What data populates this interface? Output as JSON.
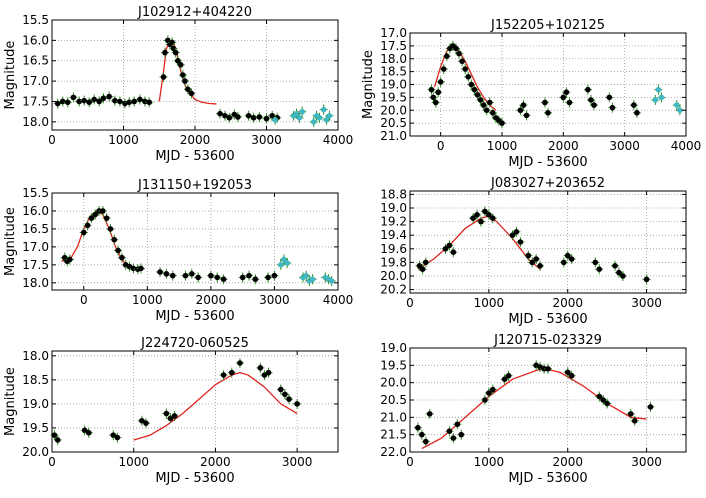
{
  "chart_data": [
    {
      "type": "scatter",
      "title": "J102912+404220",
      "xlabel": "MJD - 53600",
      "ylabel": "Magnitude",
      "xlim": [
        0,
        4000
      ],
      "ylim": [
        18.2,
        15.5
      ],
      "y_inverted": true,
      "grid": true,
      "xticks": [
        0,
        1000,
        2000,
        3000,
        4000
      ],
      "yticks": [
        15.5,
        16.0,
        16.5,
        17.0,
        17.5,
        18.0
      ],
      "xtick_labels": [
        "0",
        "1000",
        "2000",
        "3000",
        "4000"
      ],
      "ytick_labels": [
        "15.5",
        "16.0",
        "16.5",
        "17.0",
        "17.5",
        "18.0"
      ],
      "series": [
        {
          "color": "#000000",
          "x": [
            80,
            150,
            220,
            300,
            380,
            450,
            520,
            590,
            660,
            720,
            800,
            880,
            950,
            1020,
            1080,
            1150,
            1230,
            1300,
            1360,
            1560,
            1580,
            1620,
            1650,
            1680,
            1700,
            1730,
            1760,
            1800,
            1830,
            1860,
            1900,
            1950,
            2350,
            2420,
            2480,
            2550,
            2600,
            2750,
            2820,
            2900,
            3000,
            3080,
            3150
          ],
          "y": [
            17.55,
            17.5,
            17.52,
            17.4,
            17.5,
            17.48,
            17.52,
            17.45,
            17.5,
            17.42,
            17.38,
            17.48,
            17.5,
            17.55,
            17.52,
            17.5,
            17.45,
            17.5,
            17.52,
            16.9,
            16.3,
            16.0,
            16.1,
            16.05,
            16.2,
            16.3,
            16.5,
            16.6,
            16.85,
            17.0,
            17.2,
            17.3,
            17.8,
            17.85,
            17.9,
            17.82,
            17.88,
            17.85,
            17.9,
            17.88,
            17.92,
            17.85,
            17.9
          ]
        },
        {
          "color": "#40b7c2",
          "x": [
            3120,
            3380,
            3420,
            3460,
            3500,
            3660,
            3700,
            3740,
            3800,
            3840,
            3880
          ],
          "y": [
            17.95,
            17.85,
            17.8,
            17.9,
            17.75,
            18.0,
            17.85,
            17.9,
            17.7,
            17.95,
            17.85
          ]
        }
      ],
      "model_curve": {
        "color": "#e0231e",
        "x": [
          1500,
          1550,
          1600,
          1650,
          1700,
          1750,
          1800,
          1850,
          1900,
          1950,
          2000,
          2100,
          2200,
          2300
        ],
        "y": [
          17.5,
          16.9,
          16.2,
          16.0,
          16.05,
          16.35,
          16.75,
          17.05,
          17.25,
          17.35,
          17.45,
          17.52,
          17.55,
          17.56
        ]
      }
    },
    {
      "type": "scatter",
      "title": "J152205+102125",
      "xlabel": "MJD - 53600",
      "ylabel": "Magnitude",
      "xlim": [
        -500,
        4000
      ],
      "ylim": [
        21.0,
        17.0
      ],
      "y_inverted": true,
      "grid": true,
      "xticks": [
        0,
        1000,
        2000,
        3000,
        4000
      ],
      "yticks": [
        17.0,
        17.5,
        18.0,
        18.5,
        19.0,
        19.5,
        20.0,
        20.5,
        21.0
      ],
      "xtick_labels": [
        "0",
        "1000",
        "2000",
        "3000",
        "4000"
      ],
      "ytick_labels": [
        "17.0",
        "17.5",
        "18.0",
        "18.5",
        "19.0",
        "19.5",
        "20.0",
        "20.5",
        "21.0"
      ],
      "series": [
        {
          "color": "#000000",
          "x": [
            -150,
            -120,
            -80,
            -40,
            0,
            50,
            100,
            150,
            200,
            250,
            300,
            350,
            400,
            450,
            500,
            550,
            600,
            650,
            700,
            750,
            800,
            850,
            900,
            950,
            1000,
            1300,
            1350,
            1400,
            1700,
            1750,
            2000,
            2050,
            2100,
            2400,
            2450,
            2500,
            2750,
            2800,
            3150,
            3200
          ],
          "y": [
            19.2,
            19.5,
            19.7,
            19.3,
            18.9,
            18.4,
            17.9,
            17.6,
            17.5,
            17.6,
            17.8,
            18.1,
            18.4,
            18.7,
            19.0,
            19.2,
            19.4,
            19.6,
            19.8,
            20.0,
            19.7,
            20.1,
            20.3,
            20.4,
            20.5,
            20.0,
            19.8,
            20.2,
            19.7,
            20.1,
            19.5,
            19.3,
            19.7,
            19.2,
            19.6,
            19.8,
            19.5,
            19.9,
            19.8,
            20.1
          ]
        },
        {
          "color": "#40b7c2",
          "x": [
            3500,
            3550,
            3600,
            3850,
            3900
          ],
          "y": [
            19.6,
            19.2,
            19.5,
            19.8,
            20.0
          ]
        }
      ],
      "model_curve": {
        "color": "#e0231e",
        "x": [
          -100,
          0,
          100,
          200,
          300,
          400,
          500,
          600,
          700,
          800,
          900
        ],
        "y": [
          19.1,
          18.3,
          17.7,
          17.5,
          17.7,
          18.1,
          18.6,
          19.1,
          19.5,
          19.8,
          20.0
        ]
      }
    },
    {
      "type": "scatter",
      "title": "J131150+192053",
      "xlabel": "MJD - 53600",
      "ylabel": "Magnitude",
      "xlim": [
        -500,
        4000
      ],
      "ylim": [
        18.2,
        15.5
      ],
      "y_inverted": true,
      "grid": true,
      "xticks": [
        0,
        1000,
        2000,
        3000,
        4000
      ],
      "yticks": [
        15.5,
        16.0,
        16.5,
        17.0,
        17.5,
        18.0
      ],
      "xtick_labels": [
        "0",
        "1000",
        "2000",
        "3000",
        "4000"
      ],
      "ytick_labels": [
        "15.5",
        "16.0",
        "16.5",
        "17.0",
        "17.5",
        "18.0"
      ],
      "series": [
        {
          "color": "#000000",
          "x": [
            -300,
            -260,
            -220,
            0,
            60,
            120,
            180,
            240,
            300,
            360,
            420,
            480,
            540,
            600,
            660,
            720,
            780,
            850,
            900,
            1200,
            1300,
            1400,
            1600,
            1700,
            1800,
            2000,
            2100,
            2200,
            2500,
            2600,
            2700,
            2900,
            3000
          ],
          "y": [
            17.3,
            17.4,
            17.35,
            16.6,
            16.4,
            16.2,
            16.1,
            16.0,
            16.0,
            16.2,
            16.5,
            16.8,
            17.1,
            17.3,
            17.5,
            17.55,
            17.6,
            17.62,
            17.6,
            17.7,
            17.75,
            17.8,
            17.8,
            17.75,
            17.85,
            17.8,
            17.85,
            17.9,
            17.85,
            17.8,
            17.9,
            17.85,
            17.8
          ]
        },
        {
          "color": "#40b7c2",
          "x": [
            3100,
            3150,
            3200,
            3450,
            3500,
            3550,
            3600,
            3800,
            3850,
            3900
          ],
          "y": [
            17.5,
            17.35,
            17.45,
            17.85,
            17.8,
            17.95,
            17.9,
            17.85,
            17.9,
            17.95
          ]
        }
      ],
      "model_curve": {
        "color": "#e0231e",
        "x": [
          -350,
          -200,
          -100,
          0,
          100,
          200,
          300,
          400,
          500,
          600,
          700,
          800
        ],
        "y": [
          17.4,
          17.3,
          17.0,
          16.5,
          16.15,
          16.0,
          16.1,
          16.5,
          17.0,
          17.35,
          17.55,
          17.6
        ]
      }
    },
    {
      "type": "scatter",
      "title": "J083027+203652",
      "xlabel": "MJD - 53600",
      "ylabel": "",
      "xlim": [
        0,
        3500
      ],
      "ylim": [
        20.25,
        18.75
      ],
      "y_inverted": true,
      "grid": true,
      "xticks": [
        0,
        1000,
        2000,
        3000
      ],
      "yticks": [
        18.8,
        19.0,
        19.2,
        19.4,
        19.6,
        19.8,
        20.0,
        20.2
      ],
      "xtick_labels": [
        "0",
        "1000",
        "2000",
        "3000"
      ],
      "ytick_labels": [
        "18.8",
        "19.0",
        "19.2",
        "19.4",
        "19.6",
        "19.8",
        "20.0",
        "20.2"
      ],
      "series": [
        {
          "color": "#000000",
          "x": [
            120,
            160,
            200,
            450,
            500,
            550,
            800,
            850,
            900,
            950,
            1000,
            1050,
            1300,
            1350,
            1400,
            1500,
            1550,
            1600,
            1650,
            1950,
            2000,
            2050,
            2350,
            2400,
            2600,
            2650,
            2700,
            3000
          ],
          "y": [
            19.85,
            19.9,
            19.8,
            19.6,
            19.55,
            19.65,
            19.15,
            19.1,
            19.2,
            19.05,
            19.1,
            19.15,
            19.4,
            19.35,
            19.5,
            19.7,
            19.8,
            19.75,
            19.85,
            19.8,
            19.7,
            19.75,
            19.8,
            19.9,
            19.85,
            19.95,
            20.0,
            20.05
          ]
        }
      ],
      "model_curve": {
        "color": "#e0231e",
        "x": [
          100,
          300,
          500,
          700,
          900,
          1000,
          1100,
          1300,
          1500,
          1650
        ],
        "y": [
          19.9,
          19.75,
          19.55,
          19.3,
          19.15,
          19.12,
          19.2,
          19.45,
          19.75,
          19.9
        ]
      }
    },
    {
      "type": "scatter",
      "title": "J224720-060525",
      "xlabel": "MJD - 53600",
      "ylabel": "Magnitude",
      "xlim": [
        0,
        3500
      ],
      "ylim": [
        20.0,
        17.9
      ],
      "y_inverted": true,
      "grid": true,
      "xticks": [
        0,
        1000,
        2000,
        3000
      ],
      "yticks": [
        18.0,
        18.5,
        19.0,
        19.5,
        20.0
      ],
      "xtick_labels": [
        "0",
        "1000",
        "2000",
        "3000"
      ],
      "ytick_labels": [
        "18.0",
        "18.5",
        "19.0",
        "19.5",
        "20.0"
      ],
      "series": [
        {
          "color": "#000000",
          "x": [
            30,
            70,
            400,
            450,
            750,
            800,
            1100,
            1150,
            1400,
            1450,
            1500,
            2100,
            2200,
            2300,
            2550,
            2600,
            2650,
            2800,
            2850,
            2900,
            3000
          ],
          "y": [
            19.65,
            19.75,
            19.55,
            19.6,
            19.65,
            19.7,
            19.35,
            19.4,
            19.2,
            19.3,
            19.25,
            18.4,
            18.35,
            18.15,
            18.25,
            18.4,
            18.35,
            18.7,
            18.8,
            18.9,
            19.0
          ]
        }
      ],
      "model_curve": {
        "color": "#e0231e",
        "x": [
          1000,
          1200,
          1400,
          1600,
          1800,
          2000,
          2200,
          2300,
          2400,
          2600,
          2800,
          3000
        ],
        "y": [
          19.75,
          19.65,
          19.45,
          19.2,
          18.9,
          18.6,
          18.4,
          18.35,
          18.4,
          18.65,
          19.0,
          19.2
        ]
      }
    },
    {
      "type": "scatter",
      "title": "J120715-023329",
      "xlabel": "MJD - 53600",
      "ylabel": "",
      "xlim": [
        0,
        3500
      ],
      "ylim": [
        22.0,
        19.0
      ],
      "y_inverted": true,
      "grid": true,
      "xticks": [
        0,
        1000,
        2000,
        3000
      ],
      "yticks": [
        19.0,
        19.5,
        20.0,
        20.5,
        21.0,
        21.5,
        22.0
      ],
      "xtick_labels": [
        "0",
        "1000",
        "2000",
        "3000"
      ],
      "ytick_labels": [
        "19.0",
        "19.5",
        "20.0",
        "20.5",
        "21.0",
        "21.5",
        "22.0"
      ],
      "series": [
        {
          "color": "#000000",
          "x": [
            100,
            150,
            200,
            250,
            500,
            550,
            600,
            650,
            950,
            1000,
            1050,
            1200,
            1250,
            1600,
            1650,
            1700,
            1750,
            2000,
            2050,
            2400,
            2450,
            2500,
            2800,
            2850,
            3050
          ],
          "y": [
            21.3,
            21.5,
            21.7,
            20.9,
            21.4,
            21.6,
            21.2,
            21.5,
            20.5,
            20.3,
            20.2,
            19.9,
            19.8,
            19.5,
            19.55,
            19.6,
            19.6,
            19.7,
            19.8,
            20.4,
            20.5,
            20.6,
            20.9,
            21.1,
            20.7
          ]
        }
      ],
      "model_curve": {
        "color": "#e0231e",
        "x": [
          150,
          400,
          700,
          1000,
          1300,
          1600,
          1700,
          1900,
          2200,
          2500,
          2800,
          3000
        ],
        "y": [
          21.9,
          21.6,
          21.0,
          20.4,
          19.9,
          19.65,
          19.6,
          19.7,
          20.1,
          20.6,
          21.0,
          21.05
        ]
      }
    }
  ]
}
